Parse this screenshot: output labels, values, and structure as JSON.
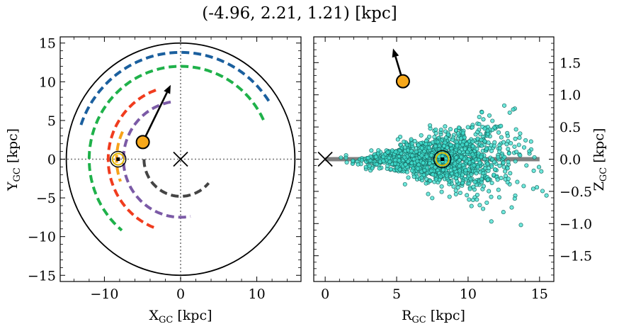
{
  "chart_data": [
    {
      "type": "scatter",
      "title": "(-4.96, 2.21, 1.21) [kpc]",
      "xlabel": "X",
      "xlabel_sub": "GC",
      "xlabel_unit": " [kpc]",
      "ylabel": "Y",
      "ylabel_sub": "GC",
      "ylabel_unit": " [kpc]",
      "xlim": [
        -15.8,
        15.8
      ],
      "ylim": [
        -15.8,
        15.8
      ],
      "xticks": [
        -10,
        0,
        10
      ],
      "yticks": [
        -15,
        -10,
        -5,
        0,
        5,
        10,
        15
      ],
      "xtick_labels": [
        "−10",
        "0",
        "10"
      ],
      "ytick_labels": [
        "−15",
        "−10",
        "−5",
        "0",
        "5",
        "10",
        "15"
      ],
      "disk_radius": 15,
      "galactic_center": [
        0,
        0
      ],
      "sun": [
        -8.2,
        0
      ],
      "object": [
        -4.96,
        2.21
      ],
      "velocity_arrow_tip": [
        -1.3,
        9.6
      ],
      "arms": [
        {
          "color": "#444444",
          "radius": 4.8,
          "angle_start": 180,
          "angle_end": 320
        },
        {
          "color": "#7b5aa6",
          "radius": 7.5,
          "angle_start": 100,
          "angle_end": 280
        },
        {
          "color": "#f03c1e",
          "radius": 9.5,
          "angle_start": 110,
          "angle_end": 250
        },
        {
          "color": "#1fb14a",
          "radius": 12.0,
          "angle_start": 25,
          "angle_end": 230
        },
        {
          "color": "#1a5f9e",
          "radius": 13.8,
          "angle_start": 33,
          "angle_end": 162
        },
        {
          "color": "#f7a21a",
          "radius": 8.4,
          "angle_start": 155,
          "angle_end": 200
        }
      ]
    },
    {
      "type": "scatter",
      "xlabel": "R",
      "xlabel_sub": "GC",
      "xlabel_unit": " [kpc]",
      "ylabel": "Z",
      "ylabel_sub": "GC",
      "ylabel_unit": " [kpc]",
      "xlim": [
        -0.8,
        16
      ],
      "ylim": [
        -1.9,
        1.9
      ],
      "xticks": [
        0,
        5,
        10,
        15
      ],
      "yticks": [
        -1.5,
        -1.0,
        -0.5,
        0.0,
        0.5,
        1.0,
        1.5
      ],
      "xtick_labels": [
        "0",
        "5",
        "10",
        "15"
      ],
      "ytick_labels": [
        "−1.5",
        "−1.0",
        "−0.5",
        "0.0",
        "0.5",
        "1.0",
        "1.5"
      ],
      "disk_line": {
        "x": [
          0,
          15
        ],
        "z": 0
      },
      "galactic_center": [
        0,
        0
      ],
      "sun": [
        8.2,
        0
      ],
      "object": [
        5.44,
        1.21
      ],
      "velocity_arrow_tip": [
        4.75,
        1.72
      ],
      "stars_color": "#40e0d0",
      "stars_count": 1400
    }
  ]
}
